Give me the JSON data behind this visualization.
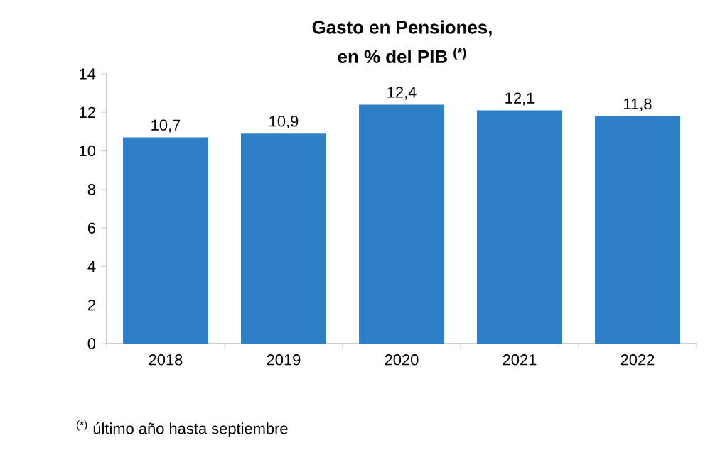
{
  "chart_data": {
    "type": "bar",
    "title": "Gasto en Pensiones,",
    "subtitle": "en % del PIB $^{(*)}$",
    "categories": [
      "2018",
      "2019",
      "2020",
      "2021",
      "2022"
    ],
    "values": [
      10.7,
      10.9,
      12.4,
      12.1,
      11.8
    ],
    "value_labels": [
      "10,7",
      "10,9",
      "12,4",
      "12,1",
      "11,8"
    ],
    "color": "#2e7fc5",
    "ylim": [
      0,
      14
    ],
    "yticks": [
      0,
      2,
      4,
      6,
      8,
      10,
      12,
      14
    ],
    "annotations": [
      "$^{(*)}$ último año hasta septiembre"
    ]
  }
}
